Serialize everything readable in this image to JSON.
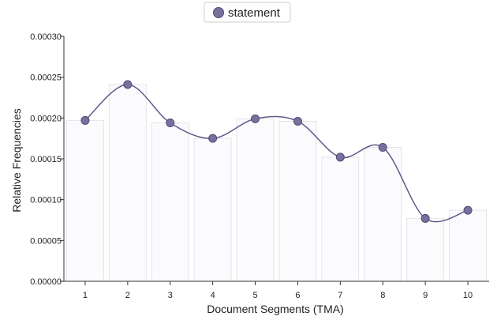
{
  "chart_data": {
    "type": "bar",
    "categories": [
      "1",
      "2",
      "3",
      "4",
      "5",
      "6",
      "7",
      "8",
      "9",
      "10"
    ],
    "series": [
      {
        "name": "statement",
        "values": [
          0.000197,
          0.000241,
          0.000194,
          0.000175,
          0.000199,
          0.000196,
          0.000152,
          0.000164,
          7.7e-05,
          8.7e-05
        ]
      }
    ],
    "overlay": "smoothed line with point markers",
    "xlabel": "Document Segments (TMA)",
    "ylabel": "Relative Frequencies",
    "ylim": [
      0,
      0.0003
    ],
    "yticks": [
      "0.00000",
      "0.00005",
      "0.00010",
      "0.00015",
      "0.00020",
      "0.00025",
      "0.00030"
    ],
    "grid": false,
    "legend_position": "top-center",
    "colors": {
      "series": "#77719d",
      "line": "#5f5a8a",
      "bar_fill": "#fbfbfe",
      "bar_stroke": "#e4e4ea",
      "axis": "#333333"
    }
  }
}
